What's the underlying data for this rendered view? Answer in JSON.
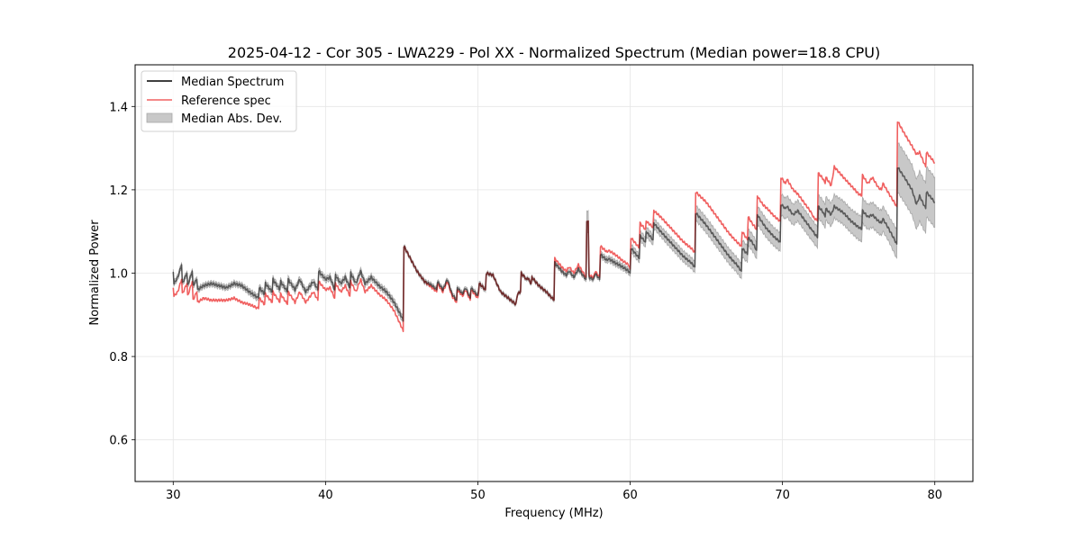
{
  "chart_data": {
    "type": "line",
    "title": "2025-04-12 - Cor 305 - LWA229 - Pol XX - Normalized Spectrum (Median power=18.8 CPU)",
    "xlabel": "Frequency (MHz)",
    "ylabel": "Normalized Power",
    "xlim": [
      27.5,
      82.5
    ],
    "ylim": [
      0.5,
      1.5
    ],
    "xticks": [
      30,
      40,
      50,
      60,
      70,
      80
    ],
    "xtick_labels": [
      "30",
      "40",
      "50",
      "60",
      "70",
      "80"
    ],
    "yticks": [
      0.6,
      0.8,
      1.0,
      1.2,
      1.4
    ],
    "ytick_labels": [
      "0.6",
      "0.8",
      "1.0",
      "1.2",
      "1.4"
    ],
    "grid": true,
    "legend_position": "top-left",
    "legend": [
      {
        "label": "Median Spectrum",
        "type": "line",
        "color": "#000000"
      },
      {
        "label": "Reference spec",
        "type": "line",
        "color": "#f06060"
      },
      {
        "label": "Median Abs. Dev.",
        "type": "fill",
        "color": "#c8c8c8"
      }
    ],
    "series_columns": [
      "frequency_mhz",
      "median",
      "reference",
      "mad"
    ],
    "series": [
      [
        30.0,
        1.003,
        0.965,
        0.006
      ],
      [
        30.05,
        0.975,
        0.945,
        0.006
      ],
      [
        30.3,
        0.99,
        0.955,
        0.006
      ],
      [
        30.55,
        1.02,
        0.985,
        0.006
      ],
      [
        30.6,
        0.975,
        0.95,
        0.006
      ],
      [
        30.9,
        1.0,
        0.975,
        0.006
      ],
      [
        30.95,
        0.97,
        0.945,
        0.006
      ],
      [
        31.25,
        1.005,
        0.98,
        0.006
      ],
      [
        31.3,
        0.97,
        0.935,
        0.006
      ],
      [
        31.55,
        0.985,
        0.955,
        0.006
      ],
      [
        31.6,
        0.96,
        0.93,
        0.006
      ],
      [
        32.0,
        0.97,
        0.94,
        0.006
      ],
      [
        32.5,
        0.975,
        0.935,
        0.006
      ],
      [
        33.0,
        0.97,
        0.935,
        0.006
      ],
      [
        33.5,
        0.965,
        0.935,
        0.006
      ],
      [
        34.0,
        0.975,
        0.94,
        0.006
      ],
      [
        34.5,
        0.97,
        0.93,
        0.006
      ],
      [
        35.0,
        0.955,
        0.925,
        0.007
      ],
      [
        35.6,
        0.94,
        0.915,
        0.007
      ],
      [
        35.65,
        0.965,
        0.94,
        0.007
      ],
      [
        36.0,
        0.95,
        0.925,
        0.007
      ],
      [
        36.05,
        0.975,
        0.95,
        0.007
      ],
      [
        36.5,
        0.955,
        0.93,
        0.007
      ],
      [
        36.55,
        0.985,
        0.955,
        0.007
      ],
      [
        37.0,
        0.96,
        0.93,
        0.007
      ],
      [
        37.05,
        0.98,
        0.95,
        0.007
      ],
      [
        37.5,
        0.955,
        0.925,
        0.007
      ],
      [
        37.55,
        0.985,
        0.955,
        0.007
      ],
      [
        38.0,
        0.96,
        0.93,
        0.007
      ],
      [
        38.3,
        0.985,
        0.955,
        0.007
      ],
      [
        38.7,
        0.955,
        0.93,
        0.007
      ],
      [
        39.2,
        0.98,
        0.955,
        0.007
      ],
      [
        39.5,
        0.96,
        0.935,
        0.007
      ],
      [
        39.55,
        1.005,
        0.98,
        0.007
      ],
      [
        40.0,
        0.985,
        0.96,
        0.007
      ],
      [
        40.3,
        0.99,
        0.965,
        0.007
      ],
      [
        40.6,
        0.96,
        0.94,
        0.007
      ],
      [
        40.65,
        0.995,
        0.975,
        0.007
      ],
      [
        41.0,
        0.975,
        0.955,
        0.007
      ],
      [
        41.3,
        0.99,
        0.97,
        0.007
      ],
      [
        41.6,
        0.965,
        0.945,
        0.007
      ],
      [
        41.65,
        1.0,
        0.98,
        0.007
      ],
      [
        42.0,
        0.975,
        0.955,
        0.007
      ],
      [
        42.3,
        1.005,
        0.985,
        0.007
      ],
      [
        42.6,
        0.975,
        0.955,
        0.007
      ],
      [
        43.0,
        0.99,
        0.97,
        0.007
      ],
      [
        43.5,
        0.97,
        0.95,
        0.007
      ],
      [
        44.0,
        0.955,
        0.935,
        0.007
      ],
      [
        44.5,
        0.93,
        0.91,
        0.008
      ],
      [
        45.0,
        0.895,
        0.87,
        0.008
      ],
      [
        45.1,
        0.885,
        0.86,
        0.008
      ],
      [
        45.15,
        1.065,
        1.065,
        0.004
      ],
      [
        45.5,
        1.04,
        1.04,
        0.004
      ],
      [
        46.0,
        1.005,
        1.005,
        0.004
      ],
      [
        46.5,
        0.98,
        0.98,
        0.005
      ],
      [
        47.0,
        0.97,
        0.965,
        0.005
      ],
      [
        47.3,
        0.96,
        0.955,
        0.005
      ],
      [
        47.35,
        0.98,
        0.975,
        0.005
      ],
      [
        47.7,
        0.96,
        0.955,
        0.005
      ],
      [
        48.0,
        0.985,
        0.98,
        0.005
      ],
      [
        48.3,
        0.95,
        0.945,
        0.005
      ],
      [
        48.6,
        0.935,
        0.93,
        0.005
      ],
      [
        48.65,
        0.965,
        0.96,
        0.005
      ],
      [
        49.0,
        0.95,
        0.945,
        0.005
      ],
      [
        49.2,
        0.965,
        0.96,
        0.005
      ],
      [
        49.5,
        0.94,
        0.935,
        0.005
      ],
      [
        49.55,
        0.965,
        0.96,
        0.005
      ],
      [
        50.0,
        0.945,
        0.94,
        0.005
      ],
      [
        50.1,
        0.975,
        0.975,
        0.005
      ],
      [
        50.5,
        0.96,
        0.96,
        0.005
      ],
      [
        50.55,
        1.0,
        1.0,
        0.004
      ],
      [
        51.0,
        0.995,
        0.995,
        0.004
      ],
      [
        51.3,
        0.97,
        0.97,
        0.004
      ],
      [
        51.5,
        0.955,
        0.955,
        0.004
      ],
      [
        52.0,
        0.94,
        0.94,
        0.004
      ],
      [
        52.5,
        0.925,
        0.925,
        0.004
      ],
      [
        52.6,
        0.95,
        0.95,
        0.004
      ],
      [
        52.8,
        0.955,
        0.955,
        0.004
      ],
      [
        52.85,
        1.0,
        1.0,
        0.004
      ],
      [
        53.2,
        0.985,
        0.985,
        0.004
      ],
      [
        53.25,
        0.99,
        0.99,
        0.004
      ],
      [
        53.5,
        0.975,
        0.975,
        0.004
      ],
      [
        53.55,
        0.99,
        0.99,
        0.004
      ],
      [
        54.0,
        0.97,
        0.97,
        0.004
      ],
      [
        54.5,
        0.955,
        0.955,
        0.004
      ],
      [
        55.0,
        0.935,
        0.935,
        0.004
      ],
      [
        55.05,
        1.025,
        1.035,
        0.005
      ],
      [
        55.5,
        1.005,
        1.015,
        0.005
      ],
      [
        55.8,
        0.995,
        1.005,
        0.005
      ],
      [
        56.0,
        1.005,
        1.015,
        0.005
      ],
      [
        56.3,
        0.99,
        1.0,
        0.005
      ],
      [
        56.6,
        1.01,
        1.02,
        0.005
      ],
      [
        57.1,
        0.985,
        0.99,
        0.005
      ],
      [
        57.15,
        1.125,
        1.125,
        0.025
      ],
      [
        57.25,
        1.125,
        1.125,
        0.025
      ],
      [
        57.3,
        0.99,
        0.995,
        0.005
      ],
      [
        57.6,
        0.985,
        0.99,
        0.005
      ],
      [
        57.7,
        1.0,
        1.005,
        0.005
      ],
      [
        58.0,
        0.985,
        0.99,
        0.005
      ],
      [
        58.05,
        1.045,
        1.065,
        0.007
      ],
      [
        58.5,
        1.03,
        1.05,
        0.007
      ],
      [
        58.55,
        1.035,
        1.055,
        0.007
      ],
      [
        59.0,
        1.025,
        1.045,
        0.007
      ],
      [
        59.5,
        1.015,
        1.03,
        0.007
      ],
      [
        59.9,
        1.005,
        1.02,
        0.007
      ],
      [
        60.0,
        1.0,
        1.01,
        0.008
      ],
      [
        60.05,
        1.06,
        1.085,
        0.01
      ],
      [
        60.5,
        1.04,
        1.065,
        0.01
      ],
      [
        60.6,
        1.035,
        1.06,
        0.01
      ],
      [
        60.65,
        1.09,
        1.12,
        0.012
      ],
      [
        61.0,
        1.075,
        1.105,
        0.012
      ],
      [
        61.05,
        1.1,
        1.125,
        0.012
      ],
      [
        61.5,
        1.08,
        1.11,
        0.012
      ],
      [
        61.55,
        1.12,
        1.15,
        0.012
      ],
      [
        62.0,
        1.1,
        1.135,
        0.012
      ],
      [
        62.5,
        1.08,
        1.115,
        0.013
      ],
      [
        63.0,
        1.06,
        1.095,
        0.013
      ],
      [
        63.5,
        1.04,
        1.075,
        0.013
      ],
      [
        64.0,
        1.025,
        1.06,
        0.013
      ],
      [
        64.25,
        1.015,
        1.05,
        0.013
      ],
      [
        64.3,
        1.145,
        1.195,
        0.018
      ],
      [
        65.0,
        1.115,
        1.17,
        0.018
      ],
      [
        65.5,
        1.09,
        1.145,
        0.018
      ],
      [
        66.0,
        1.065,
        1.12,
        0.018
      ],
      [
        66.5,
        1.04,
        1.095,
        0.018
      ],
      [
        67.0,
        1.02,
        1.075,
        0.018
      ],
      [
        67.3,
        1.005,
        1.065,
        0.018
      ],
      [
        67.35,
        1.06,
        1.1,
        0.02
      ],
      [
        67.7,
        1.045,
        1.08,
        0.02
      ],
      [
        67.75,
        1.085,
        1.135,
        0.02
      ],
      [
        68.0,
        1.075,
        1.12,
        0.02
      ],
      [
        68.3,
        1.055,
        1.105,
        0.02
      ],
      [
        68.35,
        1.14,
        1.185,
        0.022
      ],
      [
        68.7,
        1.12,
        1.165,
        0.022
      ],
      [
        69.0,
        1.105,
        1.155,
        0.022
      ],
      [
        69.5,
        1.085,
        1.135,
        0.022
      ],
      [
        69.85,
        1.075,
        1.125,
        0.022
      ],
      [
        69.9,
        1.165,
        1.23,
        0.025
      ],
      [
        70.2,
        1.155,
        1.215,
        0.025
      ],
      [
        70.3,
        1.16,
        1.225,
        0.025
      ],
      [
        70.7,
        1.14,
        1.2,
        0.025
      ],
      [
        71.0,
        1.15,
        1.19,
        0.025
      ],
      [
        71.5,
        1.125,
        1.165,
        0.025
      ],
      [
        71.9,
        1.105,
        1.145,
        0.025
      ],
      [
        72.0,
        1.1,
        1.135,
        0.025
      ],
      [
        72.3,
        1.085,
        1.125,
        0.025
      ],
      [
        72.35,
        1.16,
        1.24,
        0.028
      ],
      [
        72.7,
        1.145,
        1.225,
        0.028
      ],
      [
        72.8,
        1.135,
        1.215,
        0.028
      ],
      [
        72.85,
        1.155,
        1.23,
        0.028
      ],
      [
        73.2,
        1.14,
        1.21,
        0.028
      ],
      [
        73.4,
        1.16,
        1.255,
        0.028
      ],
      [
        74.0,
        1.145,
        1.23,
        0.028
      ],
      [
        74.5,
        1.125,
        1.21,
        0.028
      ],
      [
        75.0,
        1.11,
        1.19,
        0.03
      ],
      [
        75.2,
        1.105,
        1.185,
        0.03
      ],
      [
        75.25,
        1.15,
        1.235,
        0.03
      ],
      [
        75.6,
        1.135,
        1.215,
        0.03
      ],
      [
        75.9,
        1.14,
        1.23,
        0.03
      ],
      [
        76.3,
        1.125,
        1.205,
        0.03
      ],
      [
        76.5,
        1.12,
        1.2,
        0.03
      ],
      [
        76.6,
        1.13,
        1.215,
        0.03
      ],
      [
        77.0,
        1.105,
        1.19,
        0.03
      ],
      [
        77.5,
        1.07,
        1.16,
        0.035
      ],
      [
        77.55,
        1.255,
        1.365,
        0.06
      ],
      [
        78.0,
        1.23,
        1.335,
        0.06
      ],
      [
        78.5,
        1.2,
        1.305,
        0.06
      ],
      [
        78.8,
        1.165,
        1.285,
        0.06
      ],
      [
        79.0,
        1.185,
        1.29,
        0.06
      ],
      [
        79.4,
        1.155,
        1.255,
        0.06
      ],
      [
        79.45,
        1.195,
        1.29,
        0.06
      ],
      [
        80.0,
        1.17,
        1.265,
        0.06
      ]
    ]
  }
}
